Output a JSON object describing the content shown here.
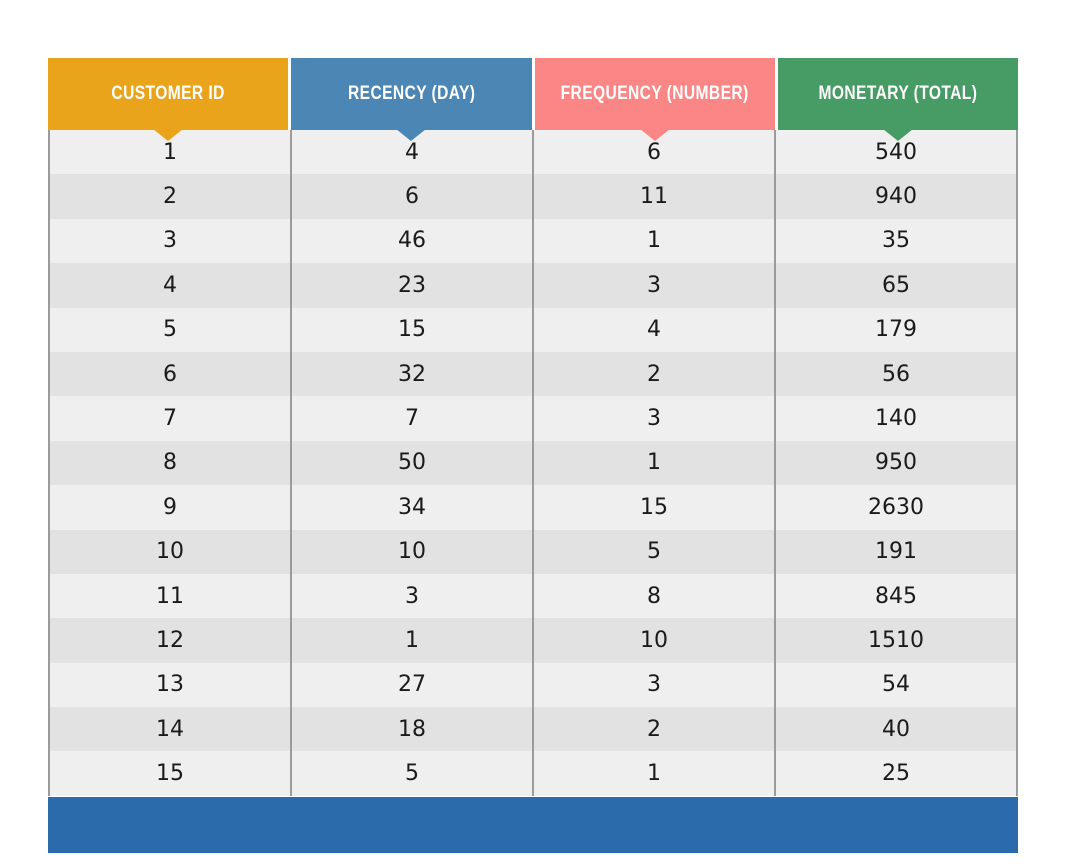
{
  "table": {
    "columns": [
      {
        "label": "CUSTOMER ID",
        "color": "#E9A41B"
      },
      {
        "label": "RECENCY (DAY)",
        "color": "#4C86B4"
      },
      {
        "label": "FREQUENCY (NUMBER)",
        "color": "#FB8686"
      },
      {
        "label": "MONETARY (TOTAL)",
        "color": "#479B64"
      }
    ],
    "row_colors": {
      "odd": "#EFEFEF",
      "even": "#E2E2E2"
    },
    "divider_color": "#9B9B9B",
    "text_color": "#1A1A1A",
    "footer_color": "#2B6BAB",
    "header_text_color": "#FFFFFF"
  },
  "chart_data": {
    "type": "table",
    "title": "",
    "columns": [
      "Customer ID",
      "Recency (Day)",
      "Frequency (Number)",
      "Monetary (Total)"
    ],
    "rows": [
      [
        1,
        4,
        6,
        540
      ],
      [
        2,
        6,
        11,
        940
      ],
      [
        3,
        46,
        1,
        35
      ],
      [
        4,
        23,
        3,
        65
      ],
      [
        5,
        15,
        4,
        179
      ],
      [
        6,
        32,
        2,
        56
      ],
      [
        7,
        7,
        3,
        140
      ],
      [
        8,
        50,
        1,
        950
      ],
      [
        9,
        34,
        15,
        2630
      ],
      [
        10,
        10,
        5,
        191
      ],
      [
        11,
        3,
        8,
        845
      ],
      [
        12,
        1,
        10,
        1510
      ],
      [
        13,
        27,
        3,
        54
      ],
      [
        14,
        18,
        2,
        40
      ],
      [
        15,
        5,
        1,
        25
      ]
    ]
  }
}
